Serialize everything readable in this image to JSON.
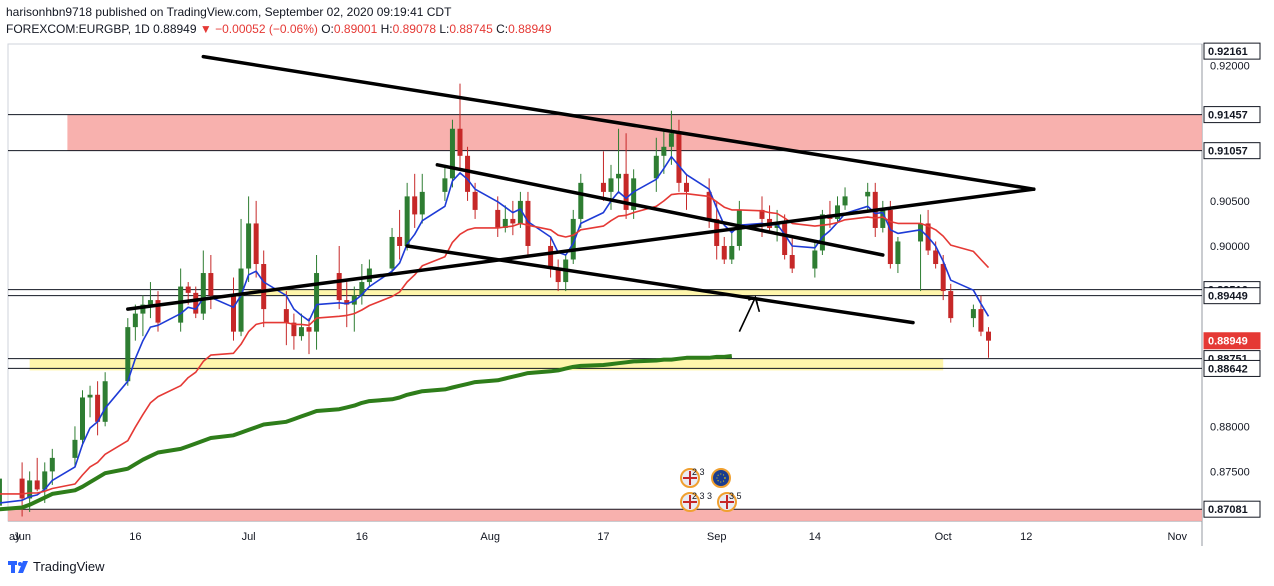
{
  "header": {
    "line1": "harisonhbn9718 published on TradingView.com, September 02, 2020 09:19:41 CDT",
    "symbol": "FOREXCOM:EURGBP, 1D",
    "last": "0.88949",
    "change_arrow": "▼",
    "change": "−0.00052 (−0.06%)",
    "o_label": "O:",
    "o": "0.89001",
    "h_label": "H:",
    "h": "0.89078",
    "l_label": "L:",
    "l": "0.88745",
    "c_label": "C:",
    "c": "0.88949"
  },
  "footer": {
    "brand": "TradingView"
  },
  "colors": {
    "up": "#2e7d32",
    "down": "#c62828",
    "ema_fast": "#1e3bd6",
    "ema_slow": "#e53935",
    "sma_long": "#2e7d1a",
    "zone_red": "#f7a9a5",
    "zone_yellow": "#fff59d"
  },
  "chart_data": {
    "type": "line",
    "title": "",
    "ylim": [
      0.8695,
      0.9224
    ],
    "y_ticks": [
      "0.92000",
      "0.90500",
      "0.90000",
      "0.88000",
      "0.87500"
    ],
    "price_labels": [
      {
        "text": "0.92161",
        "value": 0.92161,
        "style": "white"
      },
      {
        "text": "0.91457",
        "value": 0.91457,
        "style": "white"
      },
      {
        "text": "0.91057",
        "value": 0.91057,
        "style": "white"
      },
      {
        "text": "0.89516",
        "value": 0.89516,
        "style": "white"
      },
      {
        "text": "0.89449",
        "value": 0.89449,
        "style": "white"
      },
      {
        "text": "0.88949",
        "value": 0.88949,
        "style": "red"
      },
      {
        "text": "06:40:28",
        "value": 0.8868,
        "style": "red"
      },
      {
        "text": "0.88751",
        "value": 0.88751,
        "style": "white"
      },
      {
        "text": "0.88642",
        "value": 0.88642,
        "style": "white"
      },
      {
        "text": "0.87081",
        "value": 0.87081,
        "style": "white"
      }
    ],
    "x_labels": [
      "ay",
      "Jun",
      "16",
      "Jul",
      "16",
      "Aug",
      "17",
      "Sep",
      "14",
      "Oct",
      "12",
      "Nov"
    ],
    "horizontal_lines": [
      0.91457,
      0.91057,
      0.89516,
      0.89449,
      0.88751,
      0.88642,
      0.87081
    ],
    "zones": [
      {
        "kind": "red",
        "x0": "Jun 7",
        "x1": "end",
        "y0": 0.91057,
        "y1": 0.91457
      },
      {
        "kind": "red",
        "x0": "start",
        "x1": "end",
        "y0": 0.8695,
        "y1": 0.87081
      },
      {
        "kind": "yellow",
        "x0": "Jul 1",
        "x1": "Oct 1",
        "y0": 0.8945,
        "y1": 0.8952
      },
      {
        "kind": "yellow",
        "x0": "Jun 2",
        "x1": "Oct 1",
        "y0": 0.8862,
        "y1": 0.8875
      }
    ],
    "candles": [
      [
        0.8712,
        0.8755,
        0.8705,
        0.8742
      ],
      [
        0.8742,
        0.876,
        0.87,
        0.872
      ],
      [
        0.872,
        0.875,
        0.8705,
        0.874
      ],
      [
        0.874,
        0.8765,
        0.8728,
        0.873
      ],
      [
        0.873,
        0.876,
        0.8715,
        0.875
      ],
      [
        0.875,
        0.8775,
        0.8735,
        0.8765
      ],
      [
        0.8765,
        0.88,
        0.8755,
        0.8785
      ],
      [
        0.8785,
        0.884,
        0.8778,
        0.8832
      ],
      [
        0.8832,
        0.8845,
        0.881,
        0.8835
      ],
      [
        0.8835,
        0.885,
        0.879,
        0.8805
      ],
      [
        0.8805,
        0.886,
        0.88,
        0.885
      ],
      [
        0.885,
        0.892,
        0.8845,
        0.891
      ],
      [
        0.891,
        0.8935,
        0.8895,
        0.8925
      ],
      [
        0.8925,
        0.8945,
        0.89,
        0.8935
      ],
      [
        0.8935,
        0.896,
        0.892,
        0.894
      ],
      [
        0.894,
        0.895,
        0.8905,
        0.8915
      ],
      [
        0.8915,
        0.8975,
        0.8905,
        0.8955
      ],
      [
        0.8955,
        0.896,
        0.8935,
        0.8948
      ],
      [
        0.8948,
        0.8955,
        0.892,
        0.8925
      ],
      [
        0.8925,
        0.8995,
        0.8918,
        0.897
      ],
      [
        0.897,
        0.899,
        0.893,
        0.8945
      ],
      [
        0.8945,
        0.8965,
        0.8895,
        0.8905
      ],
      [
        0.8905,
        0.903,
        0.89,
        0.8975
      ],
      [
        0.8975,
        0.9055,
        0.896,
        0.9025
      ],
      [
        0.9025,
        0.905,
        0.8965,
        0.898
      ],
      [
        0.898,
        0.8995,
        0.891,
        0.893
      ],
      [
        0.893,
        0.895,
        0.889,
        0.8915
      ],
      [
        0.8915,
        0.8925,
        0.8885,
        0.89
      ],
      [
        0.89,
        0.8925,
        0.8895,
        0.891
      ],
      [
        0.891,
        0.892,
        0.888,
        0.8905
      ],
      [
        0.8905,
        0.899,
        0.8885,
        0.897
      ],
      [
        0.897,
        0.9,
        0.893,
        0.894
      ],
      [
        0.894,
        0.896,
        0.891,
        0.8935
      ],
      [
        0.8935,
        0.8955,
        0.8905,
        0.8945
      ],
      [
        0.8945,
        0.898,
        0.8935,
        0.896
      ],
      [
        0.896,
        0.8985,
        0.8955,
        0.8975
      ],
      [
        0.8975,
        0.902,
        0.897,
        0.901
      ],
      [
        0.901,
        0.904,
        0.8985,
        0.9
      ],
      [
        0.9,
        0.907,
        0.8995,
        0.9055
      ],
      [
        0.9055,
        0.908,
        0.902,
        0.9035
      ],
      [
        0.9035,
        0.908,
        0.9025,
        0.906
      ],
      [
        0.906,
        0.909,
        0.905,
        0.9075
      ],
      [
        0.9075,
        0.914,
        0.9065,
        0.913
      ],
      [
        0.913,
        0.918,
        0.9085,
        0.91
      ],
      [
        0.91,
        0.911,
        0.905,
        0.906
      ],
      [
        0.906,
        0.907,
        0.903,
        0.904
      ],
      [
        0.904,
        0.9055,
        0.901,
        0.902
      ],
      [
        0.902,
        0.9045,
        0.9015,
        0.903
      ],
      [
        0.903,
        0.905,
        0.9012,
        0.9025
      ],
      [
        0.9025,
        0.906,
        0.902,
        0.905
      ],
      [
        0.905,
        0.906,
        0.899,
        0.9
      ],
      [
        0.9,
        0.901,
        0.8965,
        0.8975
      ],
      [
        0.8975,
        0.8985,
        0.895,
        0.896
      ],
      [
        0.896,
        0.899,
        0.895,
        0.8985
      ],
      [
        0.8985,
        0.904,
        0.898,
        0.903
      ],
      [
        0.903,
        0.908,
        0.902,
        0.907
      ],
      [
        0.907,
        0.9105,
        0.905,
        0.906
      ],
      [
        0.906,
        0.909,
        0.904,
        0.9075
      ],
      [
        0.9075,
        0.913,
        0.906,
        0.908
      ],
      [
        0.908,
        0.9125,
        0.903,
        0.904
      ],
      [
        0.904,
        0.9085,
        0.903,
        0.9075
      ],
      [
        0.9075,
        0.912,
        0.906,
        0.91
      ],
      [
        0.91,
        0.913,
        0.908,
        0.911
      ],
      [
        0.911,
        0.915,
        0.909,
        0.9125
      ],
      [
        0.9125,
        0.914,
        0.906,
        0.907
      ],
      [
        0.907,
        0.908,
        0.904,
        0.906
      ],
      [
        0.906,
        0.9075,
        0.902,
        0.903
      ],
      [
        0.903,
        0.905,
        0.8985,
        0.9
      ],
      [
        0.9,
        0.901,
        0.898,
        0.8985
      ],
      [
        0.8985,
        0.902,
        0.898,
        0.9
      ],
      [
        0.9,
        0.905,
        0.8995,
        0.904
      ],
      [
        0.904,
        0.9055,
        0.901,
        0.903
      ],
      [
        0.903,
        0.9045,
        0.9015,
        0.902
      ],
      [
        0.902,
        0.904,
        0.9005,
        0.9025
      ],
      [
        0.9025,
        0.9035,
        0.8985,
        0.899
      ],
      [
        0.899,
        0.901,
        0.897,
        0.8975
      ],
      [
        0.8975,
        0.9005,
        0.8965,
        0.8995
      ],
      [
        0.8995,
        0.904,
        0.899,
        0.9035
      ],
      [
        0.9035,
        0.905,
        0.902,
        0.903
      ],
      [
        0.903,
        0.9055,
        0.9025,
        0.9045
      ],
      [
        0.9045,
        0.9065,
        0.904,
        0.9055
      ],
      [
        0.9055,
        0.907,
        0.904,
        0.906
      ],
      [
        0.906,
        0.907,
        0.901,
        0.902
      ],
      [
        0.902,
        0.905,
        0.9015,
        0.904
      ],
      [
        0.904,
        0.905,
        0.8975,
        0.898
      ],
      [
        0.898,
        0.901,
        0.897,
        0.9005
      ],
      [
        0.9005,
        0.9035,
        0.895,
        0.9025
      ],
      [
        0.9025,
        0.904,
        0.899,
        0.8995
      ],
      [
        0.8995,
        0.9005,
        0.8975,
        0.898
      ],
      [
        0.898,
        0.899,
        0.894,
        0.895
      ],
      [
        0.895,
        0.8958,
        0.8915,
        0.892
      ],
      [
        0.892,
        0.8935,
        0.891,
        0.893
      ],
      [
        0.893,
        0.8945,
        0.89,
        0.8905
      ],
      [
        0.8905,
        0.891,
        0.8876,
        0.8895
      ]
    ],
    "series": [
      {
        "name": "",
        "kind": "ema_fast",
        "values": [
          0.8715,
          0.8718,
          0.8722,
          0.8724,
          0.873,
          0.874,
          0.8755,
          0.878,
          0.8798,
          0.8805,
          0.882,
          0.885,
          0.8875,
          0.8895,
          0.891,
          0.8912,
          0.8925,
          0.8932,
          0.893,
          0.8942,
          0.8943,
          0.8932,
          0.8945,
          0.8968,
          0.8972,
          0.896,
          0.8945,
          0.893,
          0.8923,
          0.8917,
          0.8935,
          0.8937,
          0.8936,
          0.8939,
          0.8946,
          0.8955,
          0.8972,
          0.8981,
          0.9002,
          0.9013,
          0.9028,
          0.9044,
          0.9072,
          0.9081,
          0.9074,
          0.9063,
          0.9049,
          0.9043,
          0.9037,
          0.9041,
          0.9027,
          0.901,
          0.8993,
          0.899,
          0.9003,
          0.9025,
          0.9037,
          0.905,
          0.906,
          0.9053,
          0.906,
          0.9074,
          0.9086,
          0.9099,
          0.9089,
          0.9079,
          0.9063,
          0.9042,
          0.9023,
          0.9015,
          0.9023,
          0.9025,
          0.9023,
          0.9024,
          0.9013,
          0.9,
          0.8998,
          0.901,
          0.9017,
          0.9026,
          0.9036,
          0.9044,
          0.9036,
          0.9037,
          0.9018,
          0.9014,
          0.9018,
          0.901,
          0.9,
          0.8983,
          0.8962,
          0.8951,
          0.8936,
          0.8922
        ]
      },
      {
        "name": "",
        "kind": "ema_slow",
        "values": [
          0.8725,
          0.8725,
          0.8726,
          0.8726,
          0.8728,
          0.8731,
          0.8736,
          0.8746,
          0.8755,
          0.876,
          0.8769,
          0.8784,
          0.8799,
          0.8813,
          0.8826,
          0.8833,
          0.8845,
          0.8854,
          0.886,
          0.8872,
          0.8879,
          0.8881,
          0.8891,
          0.8905,
          0.8913,
          0.8915,
          0.8915,
          0.8913,
          0.8913,
          0.8912,
          0.892,
          0.8922,
          0.8923,
          0.8925,
          0.8929,
          0.8934,
          0.8944,
          0.8949,
          0.896,
          0.8968,
          0.8978,
          0.8988,
          0.9004,
          0.9013,
          0.9018,
          0.902,
          0.902,
          0.9021,
          0.9022,
          0.9025,
          0.9023,
          0.9018,
          0.9012,
          0.901,
          0.9012,
          0.9018,
          0.9022,
          0.9028,
          0.9033,
          0.9034,
          0.9037,
          0.9044,
          0.905,
          0.9057,
          0.9058,
          0.9058,
          0.9055,
          0.9049,
          0.9043,
          0.904,
          0.904,
          0.9039,
          0.9037,
          0.9036,
          0.9031,
          0.9025,
          0.9022,
          0.9023,
          0.9024,
          0.9026,
          0.9029,
          0.9032,
          0.9031,
          0.9032,
          0.9027,
          0.9025,
          0.9025,
          0.9022,
          0.9018,
          0.9011,
          0.9001,
          0.8994,
          0.8985,
          0.8976
        ]
      },
      {
        "name": "",
        "kind": "sma_long",
        "values": [
          0.8708,
          0.871,
          0.8713,
          0.8717,
          0.8721,
          0.8725,
          0.8729,
          0.8733,
          0.8738,
          0.8743,
          0.8748,
          0.8753,
          0.8758,
          0.8763,
          0.8767,
          0.8771,
          0.8775,
          0.8778,
          0.8781,
          0.8784,
          0.8787,
          0.879,
          0.8793,
          0.8796,
          0.8799,
          0.8802,
          0.8805,
          0.8808,
          0.8811,
          0.8814,
          0.8817,
          0.8819,
          0.8821,
          0.8823,
          0.8826,
          0.8828,
          0.883,
          0.8832,
          0.8835,
          0.8837,
          0.8839,
          0.8841,
          0.8843,
          0.8845,
          0.8847,
          0.8849,
          0.8851,
          0.8853,
          0.8855,
          0.8857,
          0.8859,
          0.8861,
          0.8862,
          0.8864,
          0.8866,
          0.8867,
          0.8868,
          0.8869,
          0.887,
          0.8871,
          0.8872,
          0.8873,
          0.8874,
          0.8874,
          0.8875,
          0.8876,
          0.8876,
          0.8877,
          0.8877,
          0.8878
        ]
      }
    ],
    "trendlines": [
      {
        "from": [
          "Jun 25",
          0.921
        ],
        "to": [
          "Oct 13",
          0.9063
        ]
      },
      {
        "from": [
          "Jun 15",
          0.893
        ],
        "to": [
          "Oct 13",
          0.9063
        ]
      },
      {
        "from": [
          "Jul 26",
          0.909
        ],
        "to": [
          "Sep 23",
          0.899
        ]
      },
      {
        "from": [
          "Jul 22",
          0.9
        ],
        "to": [
          "Sep 27",
          0.8915
        ]
      }
    ],
    "event_markers": [
      {
        "text": "2 3",
        "kind": "uk"
      },
      {
        "text": "",
        "kind": "eu"
      },
      {
        "text": "2 3 3",
        "kind": "uk"
      },
      {
        "text": "3 5",
        "kind": "uk"
      }
    ]
  }
}
